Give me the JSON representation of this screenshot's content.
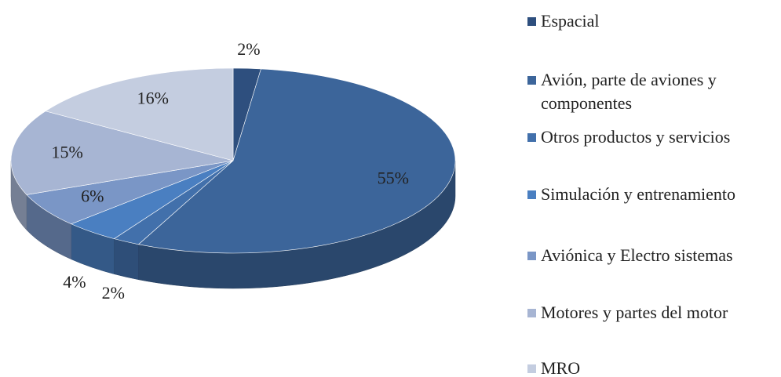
{
  "chart_data": {
    "type": "pie3d",
    "categories": [
      "Espacial",
      "Avión, parte de aviones y componentes",
      "Otros productos y servicios",
      "Simulación y entrenamiento",
      "Aviónica y Electro sistemas",
      "Motores y partes del motor",
      "MRO"
    ],
    "values": [
      2,
      55,
      2,
      4,
      6,
      15,
      16
    ],
    "value_labels": [
      "2%",
      "55%",
      "2%",
      "4%",
      "6%",
      "15%",
      "16%"
    ],
    "colors": [
      "#2e4f7e",
      "#3c659a",
      "#4270ab",
      "#4a7fc1",
      "#7a96c6",
      "#a7b5d3",
      "#c4cde0"
    ],
    "legend": "right"
  }
}
